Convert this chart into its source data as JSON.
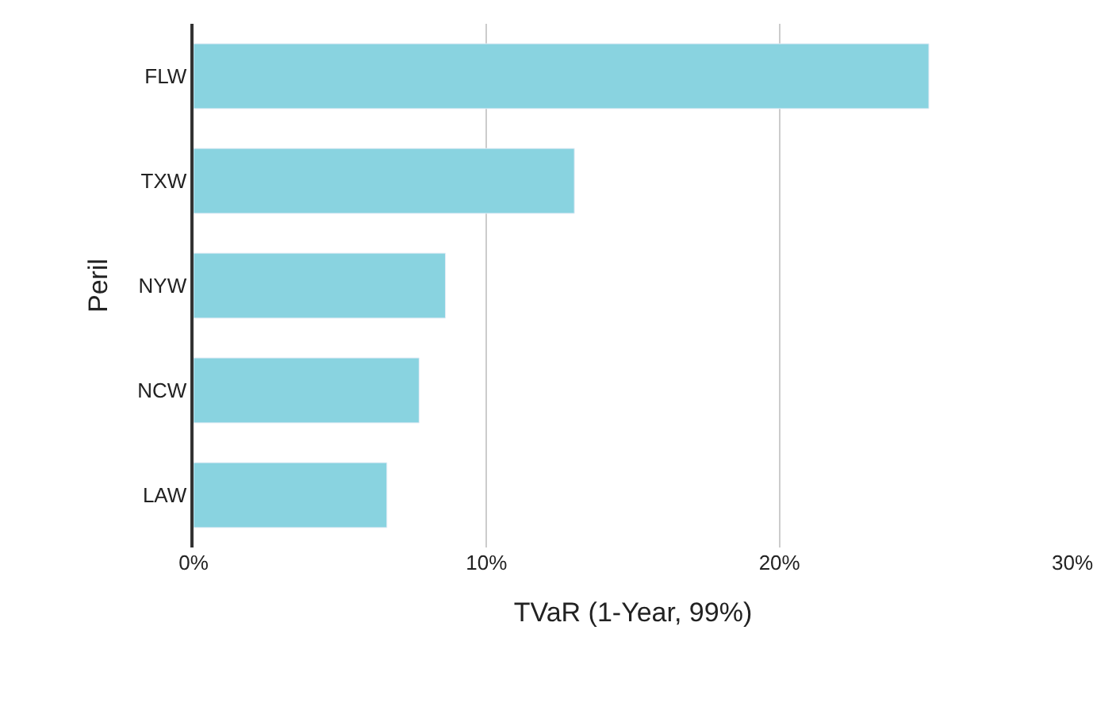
{
  "chart_data": {
    "type": "bar",
    "orientation": "horizontal",
    "xlabel": "TVaR (1-Year, 99%)",
    "ylabel": "Peril",
    "categories": [
      "FLW",
      "TXW",
      "NYW",
      "NCW",
      "LAW"
    ],
    "values": [
      25.1,
      13.0,
      8.6,
      7.7,
      6.6
    ],
    "color": "#89d3e0",
    "xlim": [
      0,
      30
    ],
    "xticks": [
      {
        "value": 0,
        "label": "0%"
      },
      {
        "value": 10,
        "label": "10%"
      },
      {
        "value": 20,
        "label": "20%"
      },
      {
        "value": 30,
        "label": "30%"
      }
    ],
    "grid": "x",
    "legend": false
  }
}
